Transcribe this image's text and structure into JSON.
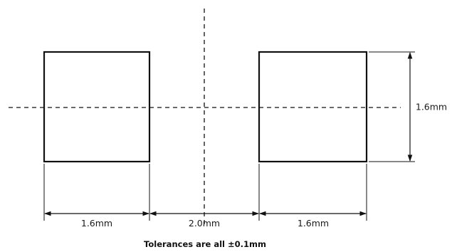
{
  "diagram": {
    "pads": [
      {
        "name": "left-pad"
      },
      {
        "name": "right-pad"
      }
    ],
    "dimensions": {
      "left_pad_width": "1.6mm",
      "pad_gap": "2.0mm",
      "right_pad_width": "1.6mm",
      "pad_height": "1.6mm"
    },
    "note": "Tolerances are all ±0.1mm",
    "colors": {
      "stroke": "#111111",
      "text": "#1a1a1a",
      "background": "#ffffff"
    }
  }
}
